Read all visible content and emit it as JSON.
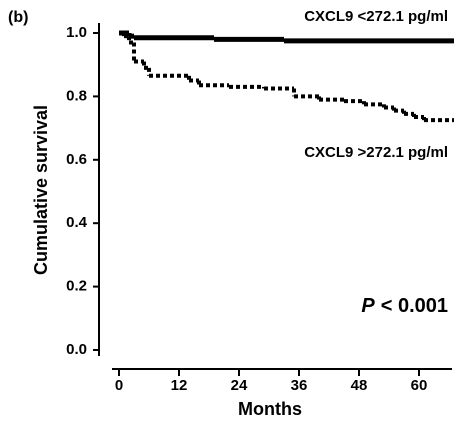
{
  "chart_data": {
    "type": "step",
    "panel_label": "(b)",
    "x_label": "Months",
    "y_label": "Cumulative survival",
    "annotation": {
      "italic": "P",
      "text": "< 0.001"
    },
    "xlim": [
      -4,
      67
    ],
    "ylim": [
      -0.06,
      1.03
    ],
    "xticks": [
      0,
      12,
      24,
      36,
      48,
      60
    ],
    "yticks": [
      {
        "value": 0,
        "label": "0.0"
      },
      {
        "value": 0.2,
        "label": "0.2"
      },
      {
        "value": 0.4,
        "label": "0.4"
      },
      {
        "value": 0.6,
        "label": "0.6"
      },
      {
        "value": 0.8,
        "label": "0.8"
      },
      {
        "value": 1.0,
        "label": "1.0"
      }
    ],
    "series": [
      {
        "name": "CXCL9 <272.1 pg/ml",
        "color": "#000000",
        "dashed": false,
        "x": [
          0,
          2,
          3,
          19,
          33,
          67
        ],
        "values": [
          1.0,
          0.99,
          0.985,
          0.98,
          0.975,
          0.975
        ]
      },
      {
        "name": "CXCL9 >272.1 pg/ml",
        "color": "#000000",
        "dashed": true,
        "x": [
          0,
          1,
          2,
          3,
          5,
          6,
          14,
          16,
          22,
          29,
          35,
          40,
          45,
          49,
          53,
          55,
          57,
          59,
          61,
          67
        ],
        "values": [
          1.0,
          0.99,
          0.97,
          0.91,
          0.89,
          0.865,
          0.85,
          0.835,
          0.83,
          0.825,
          0.8,
          0.79,
          0.785,
          0.775,
          0.765,
          0.755,
          0.745,
          0.735,
          0.725,
          0.725
        ]
      }
    ]
  }
}
